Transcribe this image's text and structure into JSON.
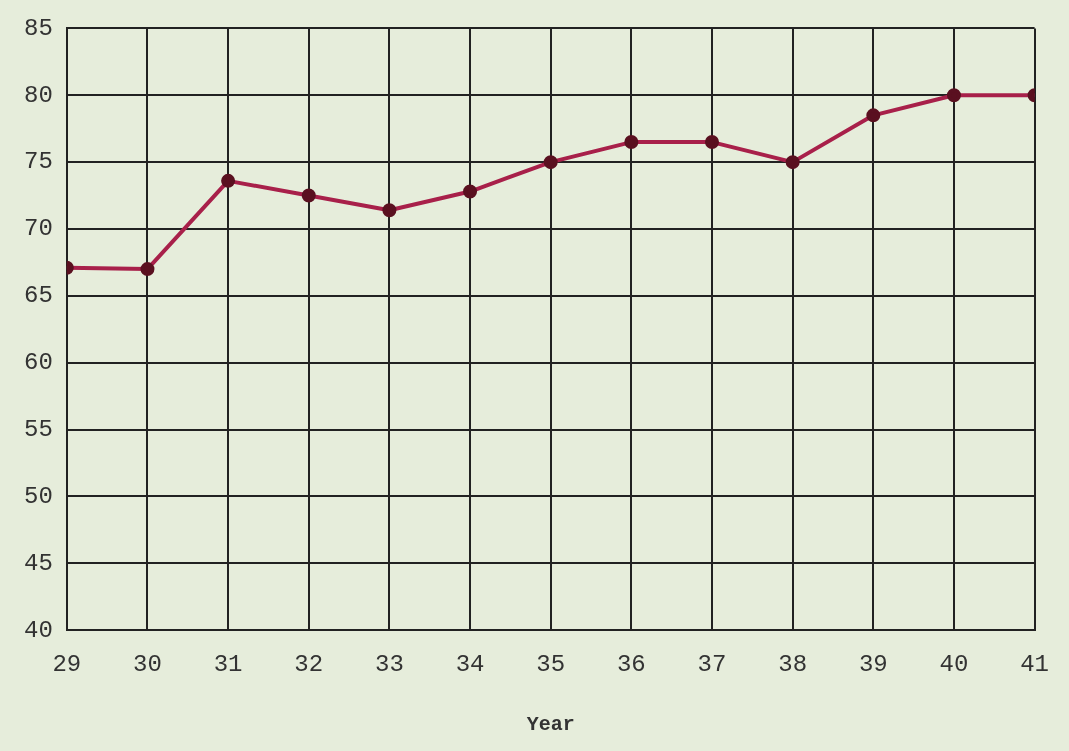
{
  "chart_data": {
    "type": "line",
    "xlabel": "Year",
    "x": [
      29,
      30,
      31,
      32,
      33,
      34,
      35,
      36,
      37,
      38,
      39,
      40,
      41
    ],
    "series": [
      {
        "color": "#a8204a",
        "values": [
          67.1,
          67,
          73.6,
          72.5,
          71.4,
          72.8,
          75,
          76.5,
          76.5,
          75,
          78.5,
          80,
          80
        ]
      }
    ],
    "xlim": [
      29,
      41
    ],
    "xticks": [
      29,
      30,
      31,
      32,
      33,
      34,
      35,
      36,
      37,
      38,
      39,
      40,
      41
    ],
    "ylim": [
      40,
      85
    ],
    "yticks": [
      40,
      45,
      50,
      55,
      60,
      65,
      70,
      75,
      80,
      85
    ],
    "grid": true,
    "marker": "circle",
    "line_style": "solid",
    "legend": false
  }
}
